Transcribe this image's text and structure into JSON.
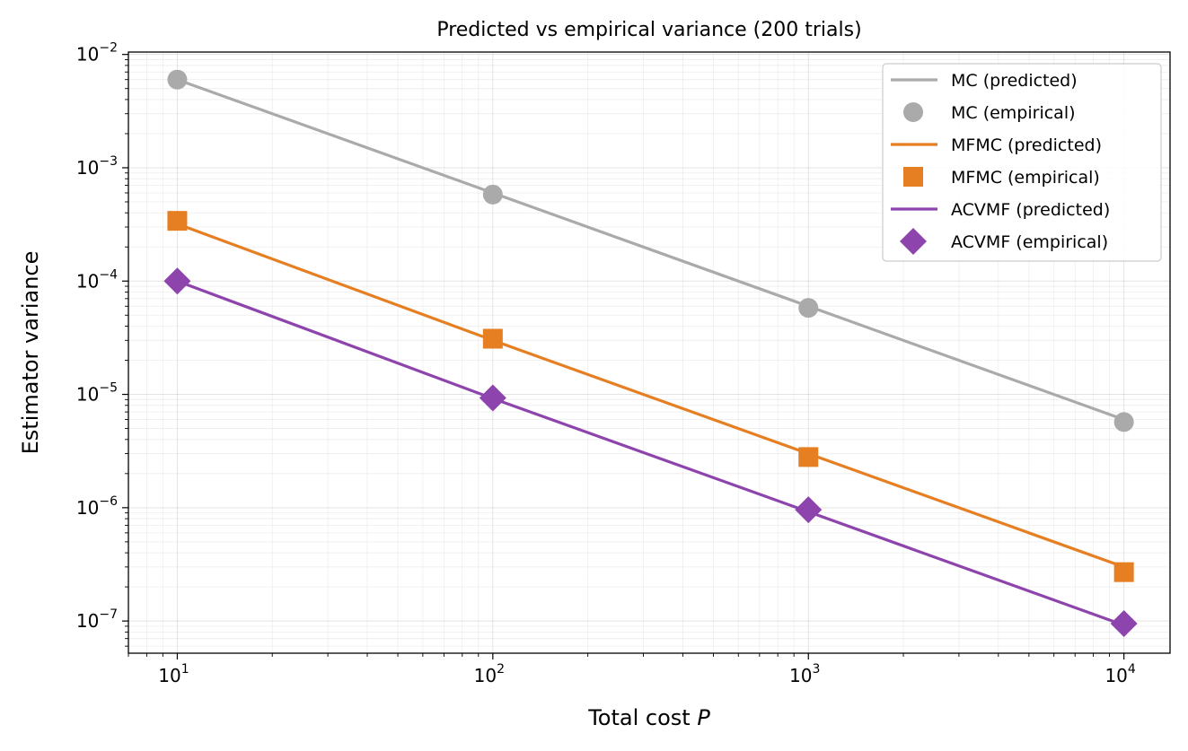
{
  "chart_data": {
    "type": "line",
    "title": "Predicted vs empirical variance  (200 trials)",
    "xlabel": "Total cost",
    "xlabel_var": "P",
    "ylabel": "Estimator variance",
    "xscale": "log",
    "yscale": "log",
    "xlim": [
      7.0,
      14000
    ],
    "ylim": [
      5.2e-08,
      0.0105
    ],
    "x": [
      10,
      100,
      1000,
      10000
    ],
    "x_ticks": [
      {
        "base": "10",
        "exp": "1",
        "value": 10
      },
      {
        "base": "10",
        "exp": "2",
        "value": 100
      },
      {
        "base": "10",
        "exp": "3",
        "value": 1000
      },
      {
        "base": "10",
        "exp": "4",
        "value": 10000
      }
    ],
    "y_ticks": [
      {
        "base": "10",
        "exp": "−2",
        "value": 0.01
      },
      {
        "base": "10",
        "exp": "−3",
        "value": 0.001
      },
      {
        "base": "10",
        "exp": "−4",
        "value": 0.0001
      },
      {
        "base": "10",
        "exp": "−5",
        "value": 1e-05
      },
      {
        "base": "10",
        "exp": "−6",
        "value": 1e-06
      },
      {
        "base": "10",
        "exp": "−7",
        "value": 1e-07
      }
    ],
    "grid": true,
    "legend_position": "top-right",
    "series": [
      {
        "key": "mc",
        "name": "MC (predicted)",
        "kind": "line",
        "color": "#aaaaaa",
        "values": [
          0.006,
          0.0006,
          6e-05,
          6e-06
        ]
      },
      {
        "key": "mc",
        "name": "MC (empirical)",
        "kind": "marker",
        "marker": "circle",
        "color": "#aaaaaa",
        "values": [
          0.006,
          0.00058,
          5.8e-05,
          5.7e-06
        ]
      },
      {
        "key": "mfmc",
        "name": "MFMC (predicted)",
        "kind": "line",
        "color": "#e67e22",
        "values": [
          0.00032,
          3e-05,
          3e-06,
          3e-07
        ]
      },
      {
        "key": "mfmc",
        "name": "MFMC (empirical)",
        "kind": "marker",
        "marker": "square",
        "color": "#e67e22",
        "values": [
          0.00034,
          3.1e-05,
          2.8e-06,
          2.7e-07
        ]
      },
      {
        "key": "acvmf",
        "name": "ACVMF (predicted)",
        "kind": "line",
        "color": "#8e44ad",
        "values": [
          0.0001,
          9.2e-06,
          9.2e-07,
          9.2e-08
        ]
      },
      {
        "key": "acvmf",
        "name": "ACVMF (empirical)",
        "kind": "marker",
        "marker": "diamond",
        "color": "#8e44ad",
        "values": [
          0.0001,
          9.3e-06,
          9.6e-07,
          9.5e-08
        ]
      }
    ]
  }
}
